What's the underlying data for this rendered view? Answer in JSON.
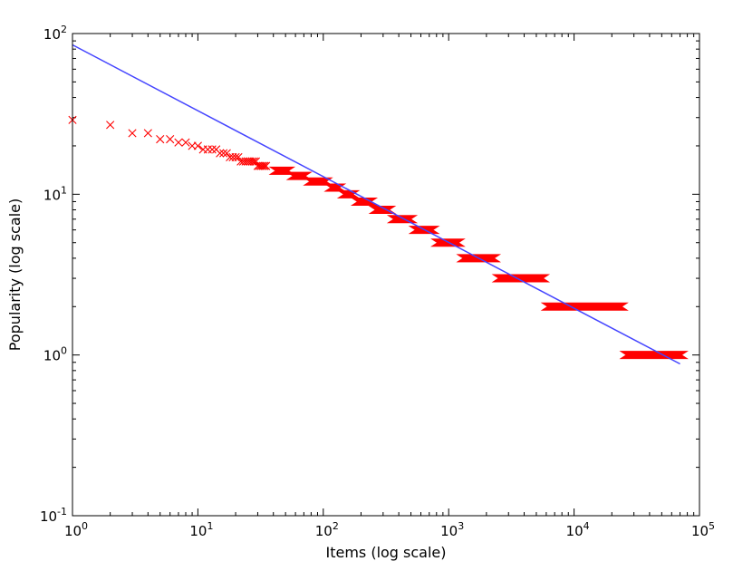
{
  "chart_data": {
    "type": "scatter",
    "title": "",
    "xlabel": "Items (log scale)",
    "ylabel": "Popularity (log scale)",
    "xscale": "log",
    "yscale": "log",
    "xlim": [
      1,
      100000
    ],
    "ylim": [
      0.1,
      100
    ],
    "grid": false,
    "legend": "none",
    "x_ticks": [
      {
        "base": "10",
        "exp": "0"
      },
      {
        "base": "10",
        "exp": "1"
      },
      {
        "base": "10",
        "exp": "2"
      },
      {
        "base": "10",
        "exp": "3"
      },
      {
        "base": "10",
        "exp": "4"
      },
      {
        "base": "10",
        "exp": "5"
      }
    ],
    "y_ticks": [
      {
        "base": "10",
        "exp": "-1"
      },
      {
        "base": "10",
        "exp": "0"
      },
      {
        "base": "10",
        "exp": "1"
      },
      {
        "base": "10",
        "exp": "2"
      }
    ],
    "series": [
      {
        "marker": "x",
        "color": "#ff0000",
        "individual_points": [
          [
            1,
            29
          ],
          [
            2,
            27
          ],
          [
            3,
            24
          ],
          [
            4,
            24
          ],
          [
            5,
            22
          ],
          [
            6,
            22
          ],
          [
            7,
            21
          ],
          [
            8,
            21
          ],
          [
            9,
            20
          ],
          [
            10,
            20
          ],
          [
            11,
            19
          ],
          [
            12,
            19
          ],
          [
            13,
            19
          ],
          [
            14,
            19
          ],
          [
            15,
            18
          ],
          [
            16,
            18
          ],
          [
            17,
            18
          ],
          [
            18,
            17
          ],
          [
            19,
            17
          ],
          [
            20,
            17
          ],
          [
            21,
            17
          ],
          [
            22,
            16
          ],
          [
            23,
            16
          ],
          [
            24,
            16
          ],
          [
            25,
            16
          ],
          [
            26,
            16
          ],
          [
            27,
            16
          ],
          [
            28,
            16
          ],
          [
            29,
            16
          ],
          [
            30,
            15
          ],
          [
            31,
            15
          ],
          [
            32,
            15
          ],
          [
            33,
            15
          ],
          [
            34,
            15
          ],
          [
            35,
            15
          ]
        ],
        "runs": [
          {
            "y": 14,
            "x_from": 40,
            "x_to": 55
          },
          {
            "y": 13,
            "x_from": 55,
            "x_to": 75
          },
          {
            "y": 12,
            "x_from": 75,
            "x_to": 110
          },
          {
            "y": 11,
            "x_from": 110,
            "x_to": 140
          },
          {
            "y": 10,
            "x_from": 140,
            "x_to": 180
          },
          {
            "y": 9,
            "x_from": 180,
            "x_to": 250
          },
          {
            "y": 8,
            "x_from": 250,
            "x_to": 350
          },
          {
            "y": 7,
            "x_from": 350,
            "x_to": 520
          },
          {
            "y": 6,
            "x_from": 520,
            "x_to": 780
          },
          {
            "y": 5,
            "x_from": 780,
            "x_to": 1250
          },
          {
            "y": 4,
            "x_from": 1250,
            "x_to": 2400
          },
          {
            "y": 3,
            "x_from": 2400,
            "x_to": 5900
          },
          {
            "y": 2,
            "x_from": 5900,
            "x_to": 25000
          },
          {
            "y": 1,
            "x_from": 25000,
            "x_to": 75000
          }
        ]
      },
      {
        "type": "line",
        "color": "#4444ff",
        "points": [
          [
            1,
            85
          ],
          [
            70000,
            0.88
          ]
        ]
      }
    ]
  }
}
